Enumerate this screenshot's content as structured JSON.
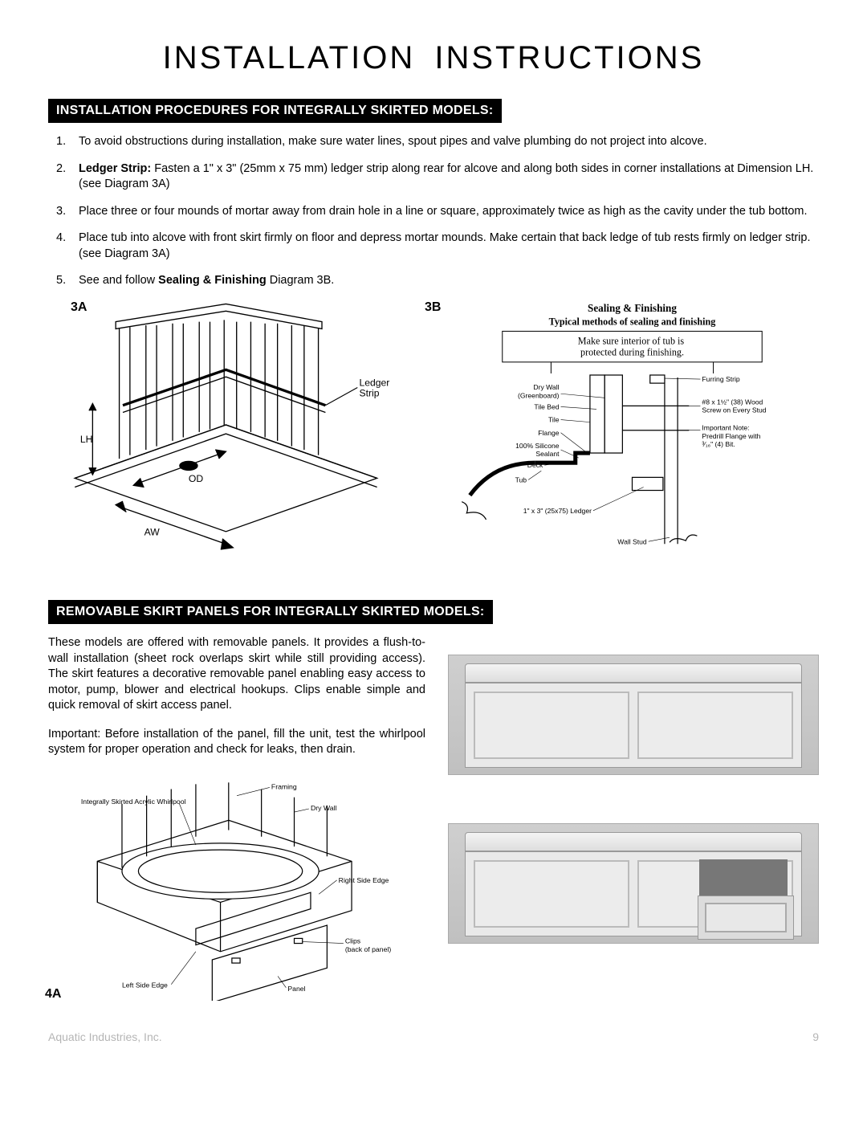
{
  "page_title": "INSTALLATION  INSTRUCTIONS",
  "section1": {
    "header": "INSTALLATION PROCEDURES FOR INTEGRALLY SKIRTED MODELS:",
    "items": [
      {
        "text": "To avoid obstructions during installation, make sure water lines, spout pipes and valve plumbing do not project into alcove."
      },
      {
        "bold_lead": "Ledger Strip:",
        "text": " Fasten a 1\" x 3\" (25mm x 75 mm) ledger strip along rear for alcove and along both sides in corner installations at Dimension LH. (see Diagram 3A)"
      },
      {
        "text": "Place three or four mounds of mortar away from drain hole in a line or square, approximately twice as high as the cavity under the tub bottom."
      },
      {
        "text": "Place tub into alcove with front skirt firmly on floor and depress mortar mounds.  Make certain that back ledge of tub rests firmly on ledger strip. (see Diagram 3A)"
      },
      {
        "pre": "See and follow ",
        "bold_mid": "Sealing & Finishing",
        "post": " Diagram 3B."
      }
    ]
  },
  "diagram3A": {
    "label": "3A",
    "callouts": {
      "ledger": "Ledger\nStrip",
      "lh": "LH",
      "od": "OD",
      "aw": "AW"
    }
  },
  "diagram3B": {
    "label": "3B",
    "title1": "Sealing & Finishing",
    "title2": "Typical methods of sealing and finishing",
    "note_box": "Make sure interior of tub is\nprotected during finishing.",
    "callouts_left": [
      "Dry Wall",
      "(Greenboard)",
      "Tile Bed",
      "Tile",
      "Flange",
      "100% Silicone",
      "Sealant",
      "Deck",
      "Tub",
      "1\" x 3\" (25x75) Ledger"
    ],
    "callouts_right_top": "Furring Strip",
    "callouts_right_screw1": "#8 x 1½\" (38) Wood",
    "callouts_right_screw2": "Screw on Every Stud",
    "callouts_right_note1": "Important Note:",
    "callouts_right_note2": "Predrill Flange with",
    "callouts_right_note3": "³⁄₁₆\" (4) Bit.",
    "wall_stud": "Wall Stud"
  },
  "section2": {
    "header": "REMOVABLE SKIRT PANELS FOR INTEGRALLY SKIRTED MODELS:",
    "p1": "These models are offered with removable panels.  It provides a flush-to-wall installation (sheet rock overlaps skirt while still providing access). The skirt features a decorative removable panel enabling easy access to motor, pump, blower and electrical hookups. Clips enable simple and quick removal of skirt access panel.",
    "p2": "Important:  Before installation of the panel, fill the unit, test the whirlpool system for proper operation and check for leaks, then drain."
  },
  "diagram4A": {
    "label": "4A",
    "callouts": {
      "integrally": "Integrally Skirted Acrylic Whirlpool",
      "framing": "Framing",
      "drywall": "Dry Wall",
      "right_edge": "Right Side Edge",
      "clips": "Clips",
      "back_panel": "(back of panel)",
      "panel": "Panel",
      "left_edge": "Left Side Edge"
    }
  },
  "footer": {
    "company": "Aquatic Industries, Inc.",
    "page": "9"
  },
  "colors": {
    "black": "#000000",
    "white": "#ffffff",
    "grey_bg": "#c8c8c8",
    "footer_grey": "#b5b5b5"
  }
}
